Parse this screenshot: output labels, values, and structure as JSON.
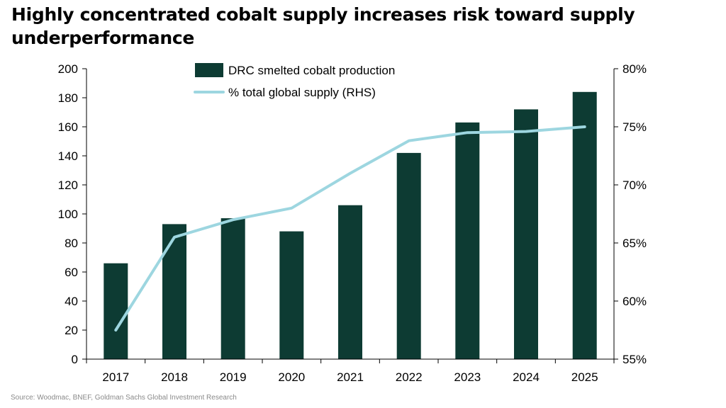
{
  "header": {
    "title": "Highly concentrated cobalt supply increases risk toward supply underperformance"
  },
  "footer": {
    "source": "Source: Woodmac, BNEF, Goldman Sachs Global Investment Research"
  },
  "colors": {
    "bar": "#0d3b33",
    "line": "#9dd6e0",
    "axis": "#000000",
    "text": "#000000"
  },
  "chart_data": {
    "type": "bar",
    "title": "",
    "xlabel": "",
    "ylabel": "",
    "y2label": "",
    "grid": false,
    "legend_position": "top-center",
    "categories": [
      "2017",
      "2018",
      "2019",
      "2020",
      "2021",
      "2022",
      "2023",
      "2024",
      "2025"
    ],
    "ylim": [
      0,
      200
    ],
    "yticks": [
      0,
      20,
      40,
      60,
      80,
      100,
      120,
      140,
      160,
      180,
      200
    ],
    "ytick_labels": [
      "0",
      "20",
      "40",
      "60",
      "80",
      "100",
      "120",
      "140",
      "160",
      "180",
      "200"
    ],
    "y2lim": [
      55,
      80
    ],
    "y2ticks": [
      55,
      60,
      65,
      70,
      75,
      80
    ],
    "y2tick_labels": [
      "55%",
      "60%",
      "65%",
      "70%",
      "75%",
      "80%"
    ],
    "series": [
      {
        "name": "DRC smelted cobalt production",
        "type": "bar",
        "axis": "left",
        "values": [
          66,
          93,
          97,
          88,
          106,
          142,
          163,
          172,
          184
        ]
      },
      {
        "name": "% total global supply (RHS)",
        "type": "line",
        "axis": "right",
        "values": [
          57.5,
          65.5,
          67.0,
          68.0,
          71.0,
          73.8,
          74.5,
          74.6,
          75.0
        ]
      }
    ]
  }
}
